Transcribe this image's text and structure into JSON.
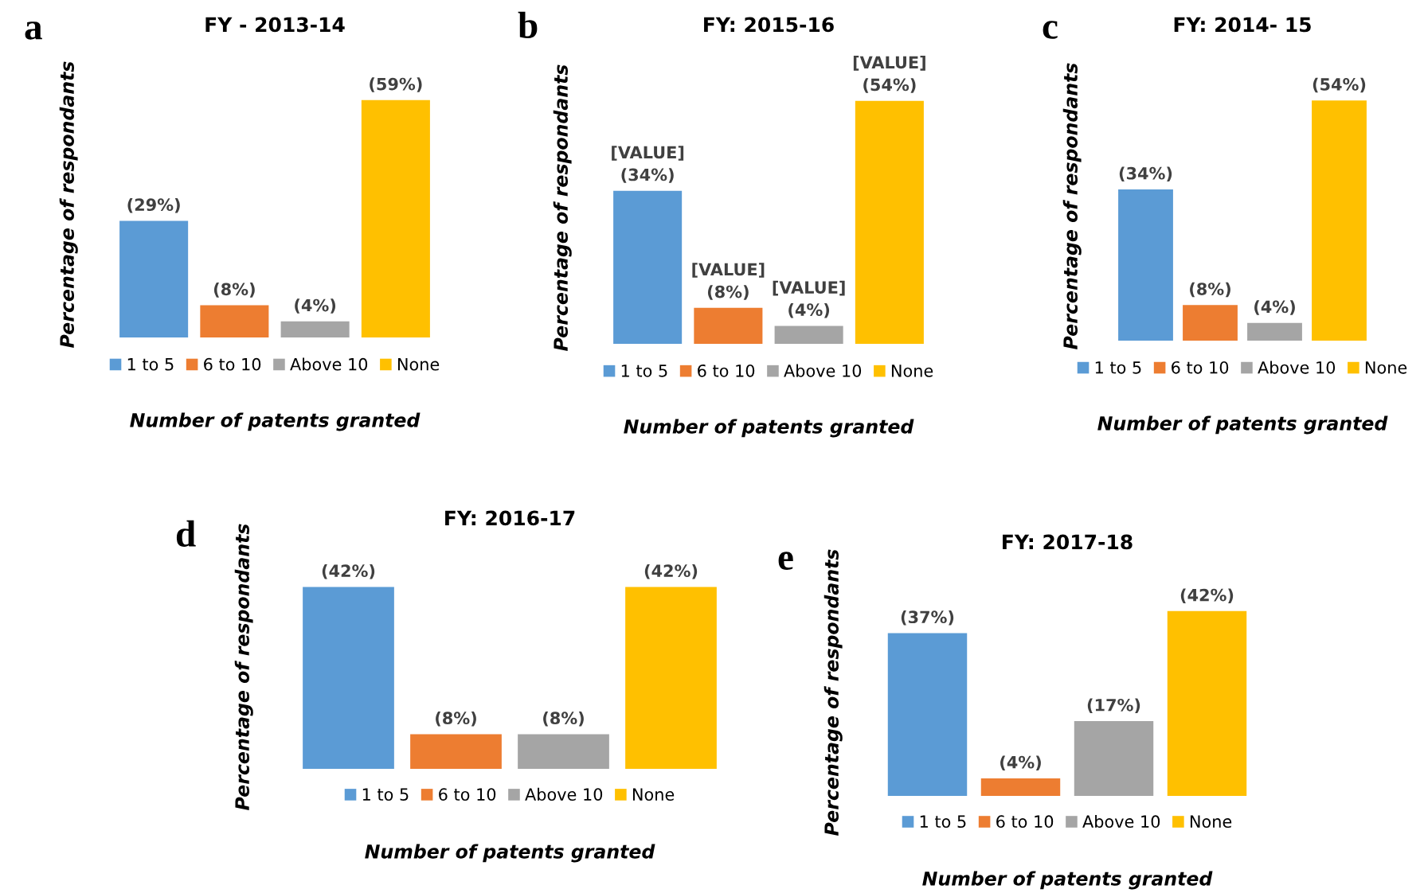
{
  "chart_data": [
    {
      "type": "bar",
      "title": "FY - 2013-14",
      "xlabel": "Number of patents granted",
      "ylabel": "Percentage of respondants",
      "annotations": [
        "a"
      ],
      "categories": [
        null
      ],
      "legend": "bottom",
      "grid": false,
      "tick_labels": false,
      "series": [
        {
          "name": "1 to 5",
          "color": "#5b9bd5",
          "values": [
            29
          ],
          "value_labels": [
            "(29%)"
          ]
        },
        {
          "name": "6 to 10",
          "color": "#ed7d31",
          "values": [
            8
          ],
          "value_labels": [
            "(8%)"
          ]
        },
        {
          "name": "Above 10",
          "color": "#a5a5a5",
          "values": [
            4
          ],
          "value_labels": [
            "(4%)"
          ]
        },
        {
          "name": "None",
          "color": "#ffc000",
          "values": [
            59
          ],
          "value_labels": [
            "(59%)"
          ]
        }
      ]
    },
    {
      "type": "bar",
      "title": "FY: 2015-16",
      "xlabel": "Number of patents granted",
      "ylabel": "Percentage of respondants",
      "annotations": [
        "b"
      ],
      "categories": [
        null
      ],
      "legend": "bottom",
      "grid": false,
      "tick_labels": false,
      "series": [
        {
          "name": "1 to 5",
          "color": "#5b9bd5",
          "values": [
            34
          ],
          "value_labels": [
            "[VALUE]\n(34%)"
          ]
        },
        {
          "name": "6 to 10",
          "color": "#ed7d31",
          "values": [
            8
          ],
          "value_labels": [
            "[VALUE]\n(8%)"
          ]
        },
        {
          "name": "Above 10",
          "color": "#a5a5a5",
          "values": [
            4
          ],
          "value_labels": [
            "[VALUE]\n(4%)"
          ]
        },
        {
          "name": "None",
          "color": "#ffc000",
          "values": [
            54
          ],
          "value_labels": [
            "[VALUE]\n(54%)"
          ]
        }
      ]
    },
    {
      "type": "bar",
      "title": "FY: 2014- 15",
      "xlabel": "Number of patents granted",
      "ylabel": "Percentage of respondants",
      "annotations": [
        "c"
      ],
      "categories": [
        null
      ],
      "legend": "bottom",
      "grid": false,
      "tick_labels": false,
      "series": [
        {
          "name": "1 to 5",
          "color": "#5b9bd5",
          "values": [
            34
          ],
          "value_labels": [
            "(34%)"
          ]
        },
        {
          "name": "6 to 10",
          "color": "#ed7d31",
          "values": [
            8
          ],
          "value_labels": [
            "(8%)"
          ]
        },
        {
          "name": "Above 10",
          "color": "#a5a5a5",
          "values": [
            4
          ],
          "value_labels": [
            "(4%)"
          ]
        },
        {
          "name": "None",
          "color": "#ffc000",
          "values": [
            54
          ],
          "value_labels": [
            "(54%)"
          ]
        }
      ]
    },
    {
      "type": "bar",
      "title": "FY: 2016-17",
      "xlabel": "Number of patents granted",
      "ylabel": "Percentage of respondants",
      "annotations": [
        "d"
      ],
      "categories": [
        null
      ],
      "legend": "bottom",
      "grid": false,
      "tick_labels": false,
      "series": [
        {
          "name": "1 to 5",
          "color": "#5b9bd5",
          "values": [
            42
          ],
          "value_labels": [
            "(42%)"
          ]
        },
        {
          "name": "6 to 10",
          "color": "#ed7d31",
          "values": [
            8
          ],
          "value_labels": [
            "(8%)"
          ]
        },
        {
          "name": "Above 10",
          "color": "#a5a5a5",
          "values": [
            8
          ],
          "value_labels": [
            "(8%)"
          ]
        },
        {
          "name": "None",
          "color": "#ffc000",
          "values": [
            42
          ],
          "value_labels": [
            "(42%)"
          ]
        }
      ]
    },
    {
      "type": "bar",
      "title": "FY: 2017-18",
      "xlabel": "Number of patents granted",
      "ylabel": "Percentage of respondants",
      "annotations": [
        "e"
      ],
      "categories": [
        null
      ],
      "legend": "bottom",
      "grid": false,
      "tick_labels": false,
      "series": [
        {
          "name": "1 to 5",
          "color": "#5b9bd5",
          "values": [
            37
          ],
          "value_labels": [
            "(37%)"
          ]
        },
        {
          "name": "6 to 10",
          "color": "#ed7d31",
          "values": [
            4
          ],
          "value_labels": [
            "(4%)"
          ]
        },
        {
          "name": "Above 10",
          "color": "#a5a5a5",
          "values": [
            17
          ],
          "value_labels": [
            "(17%)"
          ]
        },
        {
          "name": "None",
          "color": "#ffc000",
          "values": [
            42
          ],
          "value_labels": [
            "(42%)"
          ]
        }
      ]
    }
  ]
}
